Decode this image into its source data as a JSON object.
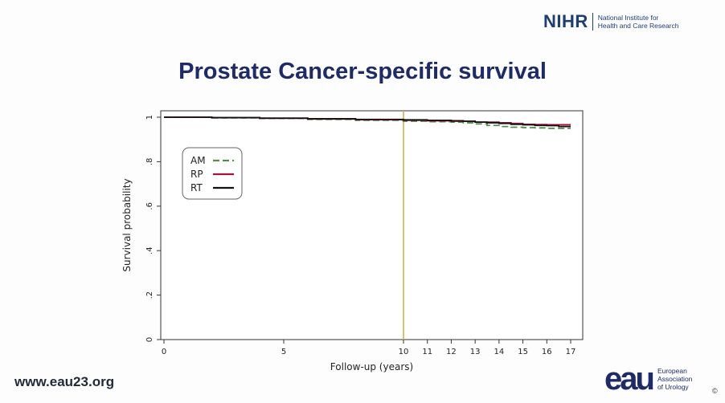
{
  "header": {
    "org_mark": "NIHR",
    "org_line1": "National Institute for",
    "org_line2": "Health and Care Research"
  },
  "slide_title": "Prostate Cancer-specific survival",
  "footer": {
    "website": "www.eau23.org",
    "eau_mark": "eau",
    "eau_line1": "European",
    "eau_line2": "Association",
    "eau_line3": "of Urology",
    "copyright": "©"
  },
  "colors": {
    "AM": "#4f8f4a",
    "RP": "#a8123a",
    "RT": "#111111",
    "vline": "#c9b64a",
    "title": "#1e2b68"
  },
  "chart_data": {
    "type": "line",
    "title": "",
    "xlabel": "Follow-up (years)",
    "ylabel": "Survival probability",
    "xlim": [
      0,
      17
    ],
    "ylim": [
      0,
      1
    ],
    "x_ticks": [
      0,
      5,
      10,
      11,
      12,
      13,
      14,
      15,
      16,
      17
    ],
    "x_tick_labels": [
      "0",
      "5",
      "10",
      "11",
      "12",
      "13",
      "14",
      "15",
      "16",
      "17"
    ],
    "y_ticks": [
      0,
      0.2,
      0.4,
      0.6,
      0.8,
      1
    ],
    "y_tick_labels": [
      "0",
      ".2",
      ".4",
      ".6",
      ".8",
      "1"
    ],
    "x_axis_scale": "piecewise: 0-10 compressed, 10-17 expanded",
    "reference_line_x": 10,
    "grid": false,
    "legend_position": "top-left",
    "series": [
      {
        "name": "AM",
        "style": "dashed",
        "x": [
          0,
          2,
          4,
          6,
          8,
          10,
          11,
          12,
          12.5,
          13,
          13.5,
          14,
          14.5,
          15,
          15.5,
          16,
          17
        ],
        "y": [
          1,
          0.997,
          0.994,
          0.99,
          0.986,
          0.982,
          0.98,
          0.978,
          0.975,
          0.97,
          0.963,
          0.958,
          0.955,
          0.953,
          0.952,
          0.95,
          0.95
        ]
      },
      {
        "name": "RP",
        "style": "solid",
        "x": [
          0,
          2,
          4,
          6,
          8,
          10,
          11,
          12,
          13,
          14,
          14.5,
          15,
          15.5,
          16,
          17
        ],
        "y": [
          1,
          0.998,
          0.995,
          0.992,
          0.989,
          0.986,
          0.984,
          0.982,
          0.978,
          0.975,
          0.972,
          0.968,
          0.967,
          0.966,
          0.966
        ]
      },
      {
        "name": "RT",
        "style": "solid",
        "x": [
          0,
          2,
          4,
          6,
          8,
          10,
          11,
          12,
          12.5,
          13,
          13.5,
          14,
          14.5,
          15,
          15.5,
          16,
          16.5,
          17
        ],
        "y": [
          1,
          0.998,
          0.996,
          0.993,
          0.99,
          0.988,
          0.986,
          0.984,
          0.982,
          0.978,
          0.975,
          0.972,
          0.968,
          0.966,
          0.963,
          0.962,
          0.958,
          0.958
        ]
      }
    ]
  }
}
